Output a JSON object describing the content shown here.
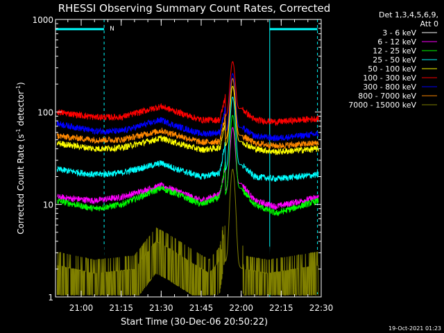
{
  "chart_data": {
    "type": "line",
    "title": "RHESSI Observing Summary Count Rates, Corrected",
    "ylabel_parts": [
      "Corrected Count Rate (s",
      "-1",
      " detector",
      "-1",
      ")"
    ],
    "xlabel": "Start Time (30-Dec-06 20:50:22)",
    "timestamp": "19-Oct-2021 01:23",
    "legend_header": [
      "Det 1,3,4,5,6,9,",
      "Att 0"
    ],
    "y_scale": "log",
    "ylim": [
      1,
      1000
    ],
    "y_ticks": [
      {
        "value": 1,
        "label": "1"
      },
      {
        "value": 10,
        "label": "10"
      },
      {
        "value": 100,
        "label": "100"
      },
      {
        "value": 1000,
        "label": "1000"
      }
    ],
    "x_range_minutes": [
      50.37,
      150
    ],
    "x_ticks": [
      {
        "t": 60,
        "label": "21:00"
      },
      {
        "t": 75,
        "label": "21:15"
      },
      {
        "t": 90,
        "label": "21:30"
      },
      {
        "t": 105,
        "label": "21:45"
      },
      {
        "t": 120,
        "label": "22:00"
      },
      {
        "t": 135,
        "label": "22:15"
      },
      {
        "t": 150,
        "label": "22:30"
      }
    ],
    "night_markers": [
      {
        "t": 50.37,
        "kind": "solid"
      },
      {
        "t": 68.6,
        "kind": "dashed"
      },
      {
        "t": 130.7,
        "kind": "solid"
      },
      {
        "t": 148.6,
        "kind": "dashed"
      }
    ],
    "flag_bars": [
      {
        "t0": 50.37,
        "t1": 68.6,
        "label": "N"
      },
      {
        "t0": 130.7,
        "t1": 148.6,
        "label": ""
      }
    ],
    "series": [
      {
        "name": "3 - 6 keV",
        "color": "#000000",
        "baseline": [
          [
            51,
            2.5
          ],
          [
            65,
            2.5
          ],
          [
            80,
            3
          ],
          [
            88,
            6
          ],
          [
            92,
            5
          ],
          [
            100,
            3.5
          ],
          [
            108,
            2.5
          ],
          [
            112,
            3
          ],
          [
            117,
            55
          ],
          [
            121,
            2.5
          ],
          [
            130,
            2.5
          ],
          [
            149,
            2.5
          ]
        ]
      },
      {
        "name": "6 - 12 keV",
        "color": "#ff00ff",
        "baseline": [
          [
            51,
            12
          ],
          [
            65,
            11
          ],
          [
            75,
            12
          ],
          [
            90,
            16
          ],
          [
            96,
            14
          ],
          [
            105,
            11
          ],
          [
            112,
            13
          ],
          [
            117,
            68
          ],
          [
            120,
            17
          ],
          [
            125,
            11
          ],
          [
            133,
            9.5
          ],
          [
            149,
            12
          ]
        ]
      },
      {
        "name": "12 - 25 keV",
        "color": "#00ff00",
        "baseline": [
          [
            51,
            11
          ],
          [
            65,
            9
          ],
          [
            75,
            10
          ],
          [
            90,
            15
          ],
          [
            96,
            13
          ],
          [
            105,
            10
          ],
          [
            112,
            12
          ],
          [
            117,
            92
          ],
          [
            120,
            15
          ],
          [
            125,
            10
          ],
          [
            133,
            8
          ],
          [
            149,
            11
          ]
        ]
      },
      {
        "name": "25 - 50 keV",
        "color": "#00ffff",
        "baseline": [
          [
            51,
            24
          ],
          [
            65,
            21
          ],
          [
            75,
            22
          ],
          [
            90,
            28
          ],
          [
            96,
            24
          ],
          [
            105,
            20
          ],
          [
            112,
            22
          ],
          [
            117,
            145
          ],
          [
            120,
            27
          ],
          [
            125,
            20
          ],
          [
            133,
            19
          ],
          [
            149,
            21
          ]
        ]
      },
      {
        "name": "50 - 100 keV",
        "color": "#ffff00",
        "baseline": [
          [
            51,
            46
          ],
          [
            65,
            40
          ],
          [
            75,
            41
          ],
          [
            90,
            52
          ],
          [
            96,
            46
          ],
          [
            105,
            39
          ],
          [
            112,
            41
          ],
          [
            117,
            190
          ],
          [
            120,
            48
          ],
          [
            125,
            40
          ],
          [
            133,
            37
          ],
          [
            149,
            40
          ]
        ]
      },
      {
        "name": "100 - 300 keV",
        "color": "#ff0000",
        "baseline": [
          [
            51,
            100
          ],
          [
            65,
            88
          ],
          [
            75,
            88
          ],
          [
            90,
            115
          ],
          [
            96,
            100
          ],
          [
            105,
            82
          ],
          [
            112,
            82
          ],
          [
            117,
            350
          ],
          [
            120,
            110
          ],
          [
            125,
            82
          ],
          [
            133,
            78
          ],
          [
            149,
            85
          ]
        ]
      },
      {
        "name": "300 - 800 keV",
        "color": "#0000ff",
        "baseline": [
          [
            51,
            75
          ],
          [
            65,
            62
          ],
          [
            75,
            62
          ],
          [
            90,
            82
          ],
          [
            96,
            70
          ],
          [
            105,
            58
          ],
          [
            112,
            60
          ],
          [
            117,
            260
          ],
          [
            120,
            68
          ],
          [
            125,
            55
          ],
          [
            133,
            52
          ],
          [
            149,
            58
          ]
        ]
      },
      {
        "name": "800 - 7000 keV",
        "color": "#ff8800",
        "baseline": [
          [
            51,
            55
          ],
          [
            65,
            50
          ],
          [
            75,
            50
          ],
          [
            90,
            63
          ],
          [
            96,
            56
          ],
          [
            105,
            47
          ],
          [
            112,
            48
          ],
          [
            117,
            230
          ],
          [
            120,
            56
          ],
          [
            125,
            46
          ],
          [
            133,
            43
          ],
          [
            149,
            46
          ]
        ]
      },
      {
        "name": "7000 - 15000 keV",
        "color": "#808000",
        "baseline": [
          [
            51,
            2.2
          ],
          [
            65,
            1.8
          ],
          [
            80,
            2
          ],
          [
            88,
            4
          ],
          [
            92,
            3.5
          ],
          [
            100,
            2.5
          ],
          [
            108,
            1.8
          ],
          [
            112,
            2.5
          ],
          [
            117,
            24
          ],
          [
            121,
            2
          ],
          [
            130,
            1.8
          ],
          [
            149,
            2.2
          ]
        ]
      }
    ]
  }
}
